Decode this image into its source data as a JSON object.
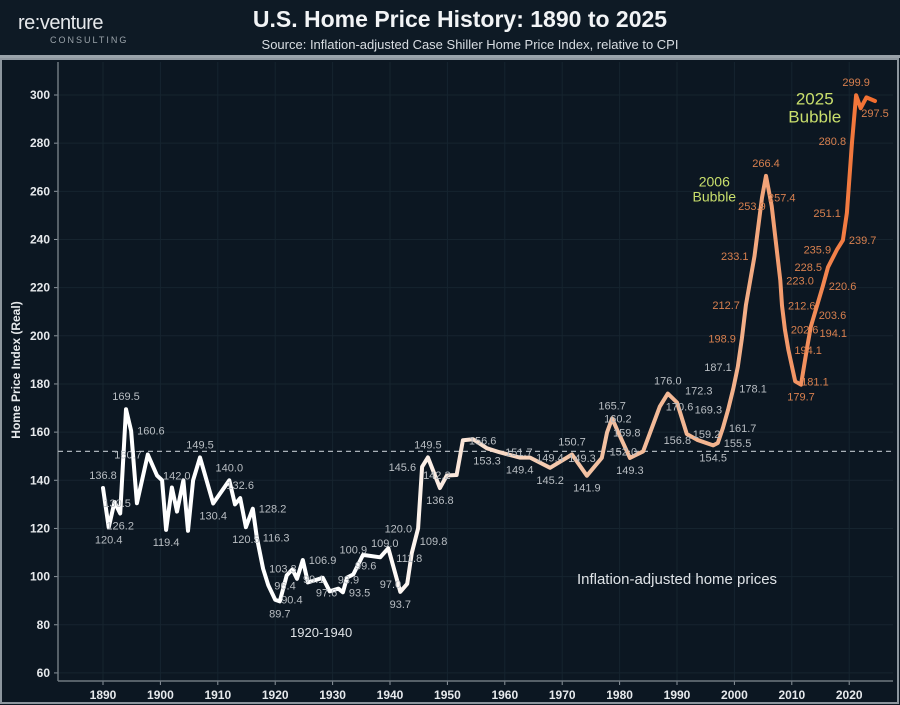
{
  "header": {
    "logo_name": "re:venture",
    "logo_sub": "CONSULTING",
    "title": "U.S. Home Price History: 1890 to 2025",
    "subtitle": "Source: Inflation-adjusted Case Shiller Home Price Index, relative to CPI"
  },
  "chart_data": {
    "type": "line",
    "title": "U.S. Home Price History: 1890 to 2025",
    "subtitle": "Source: Inflation-adjusted Case Shiller Home Price Index, relative to CPI",
    "xlabel": "",
    "ylabel": "Home Price Index (Real)",
    "xlim": [
      1882,
      2027
    ],
    "ylim": [
      57,
      312
    ],
    "x_ticks": [
      1890,
      1900,
      1910,
      1920,
      1930,
      1940,
      1950,
      1960,
      1970,
      1980,
      1990,
      2000,
      2010,
      2020
    ],
    "y_ticks": [
      60,
      80,
      100,
      120,
      140,
      160,
      180,
      200,
      220,
      240,
      260,
      280,
      300
    ],
    "grid": true,
    "reference_line": {
      "value": 152,
      "style": "dashed"
    },
    "colors": {
      "early": "#ffffff",
      "mid": "#f3c4a6",
      "late": "#f26a2a",
      "annotation": "#c9df6c",
      "label": "#b9bec3",
      "late_label": "#d8804f",
      "background": "#0c1722"
    },
    "annotations": [
      {
        "text_line1": "2006",
        "text_line2": "Bubble",
        "x": 1996.5,
        "y": 262
      },
      {
        "text_line1": "2025",
        "text_line2": "Bubble",
        "x": 2014,
        "y": 296
      },
      {
        "text": "1920-1940",
        "x": 1928,
        "y": 75
      },
      {
        "text": "Inflation-adjusted home prices",
        "x": 1990,
        "y": 97
      }
    ],
    "points": [
      [
        1890.0,
        136.8,
        "136.8"
      ],
      [
        1891.0,
        120.4,
        "120.4"
      ],
      [
        1892.0,
        131.0,
        ""
      ],
      [
        1893.0,
        126.2,
        "126.2"
      ],
      [
        1894.0,
        169.5,
        "169.5"
      ],
      [
        1894.9,
        160.6,
        "160.6"
      ],
      [
        1895.9,
        130.5,
        "130.5"
      ],
      [
        1897.8,
        150.7,
        "150.7"
      ],
      [
        1899.4,
        142.0,
        "142.0"
      ],
      [
        1900.3,
        140.0,
        ""
      ],
      [
        1901.0,
        119.4,
        "119.4"
      ],
      [
        1902.0,
        137.0,
        ""
      ],
      [
        1902.9,
        127.0,
        ""
      ],
      [
        1904.0,
        140.0,
        ""
      ],
      [
        1904.8,
        119.0,
        ""
      ],
      [
        1905.7,
        140.0,
        ""
      ],
      [
        1906.9,
        149.5,
        "149.5"
      ],
      [
        1909.2,
        130.4,
        "130.4"
      ],
      [
        1912.0,
        140.0,
        "140.0"
      ],
      [
        1913.0,
        130.0,
        ""
      ],
      [
        1913.9,
        132.6,
        "132.6"
      ],
      [
        1914.9,
        120.5,
        "120.5"
      ],
      [
        1916.1,
        128.2,
        "128.2"
      ],
      [
        1916.8,
        116.3,
        "116.3"
      ],
      [
        1917.9,
        103.3,
        "103.3"
      ],
      [
        1918.8,
        96.4,
        "96.4"
      ],
      [
        1920.0,
        90.4,
        "90.4"
      ],
      [
        1920.8,
        89.7,
        "89.7"
      ],
      [
        1922.0,
        100.5,
        ""
      ],
      [
        1923.0,
        103.0,
        ""
      ],
      [
        1923.8,
        99.1,
        "99.1"
      ],
      [
        1924.8,
        106.9,
        "106.9"
      ],
      [
        1925.7,
        97.6,
        "97.6"
      ],
      [
        1928.3,
        99.5,
        ""
      ],
      [
        1929.5,
        93.9,
        "93.9"
      ],
      [
        1931.0,
        95.0,
        ""
      ],
      [
        1931.8,
        93.5,
        "93.5"
      ],
      [
        1932.5,
        99.6,
        "99.6"
      ],
      [
        1933.6,
        100.9,
        "100.9"
      ],
      [
        1935.3,
        109.0,
        "109.0"
      ],
      [
        1938.3,
        108.0,
        ""
      ],
      [
        1939.7,
        111.8,
        "111.8"
      ],
      [
        1941.8,
        93.7,
        "93.7"
      ],
      [
        1943.0,
        97.0,
        "97.0"
      ],
      [
        1943.8,
        109.8,
        "109.8"
      ],
      [
        1944.9,
        120.0,
        "120.0"
      ],
      [
        1945.6,
        145.6,
        "145.6"
      ],
      [
        1946.6,
        149.5,
        "149.5"
      ],
      [
        1948.7,
        136.8,
        "136.8"
      ],
      [
        1949.9,
        142.0,
        ""
      ],
      [
        1951.6,
        142.2,
        "142.2"
      ],
      [
        1952.7,
        156.6,
        "156.6"
      ],
      [
        1954.5,
        157.0,
        ""
      ],
      [
        1956.9,
        153.3,
        "153.3"
      ],
      [
        1959.0,
        151.7,
        "151.7"
      ],
      [
        1962.6,
        149.4,
        "149.4"
      ],
      [
        1964.4,
        149.4,
        "149.4"
      ],
      [
        1967.9,
        145.2,
        "145.2"
      ],
      [
        1971.7,
        150.7,
        "150.7"
      ],
      [
        1974.3,
        141.9,
        "141.9"
      ],
      [
        1976.9,
        149.3,
        "149.3"
      ],
      [
        1977.8,
        159.8,
        "159.8"
      ],
      [
        1978.7,
        165.7,
        "165.7"
      ],
      [
        1979.7,
        160.2,
        "160.2"
      ],
      [
        1981.8,
        149.3,
        "149.3"
      ],
      [
        1984.1,
        152.0,
        "152.0"
      ],
      [
        1987.0,
        170.6,
        "170.6"
      ],
      [
        1988.4,
        176.0,
        "176.0"
      ],
      [
        1990.0,
        172.3,
        "172.3"
      ],
      [
        1991.7,
        159.2,
        "159.2"
      ],
      [
        1993.5,
        156.8,
        "156.8"
      ],
      [
        1996.3,
        154.5,
        "154.5"
      ],
      [
        1997.1,
        155.5,
        "155.5"
      ],
      [
        1998.0,
        161.7,
        "161.7"
      ],
      [
        1998.9,
        169.3,
        "169.3"
      ],
      [
        1999.8,
        178.1,
        "178.1"
      ],
      [
        2000.6,
        187.1,
        "187.1"
      ],
      [
        2001.3,
        198.9,
        "198.9"
      ],
      [
        2002.0,
        212.7,
        "212.7"
      ],
      [
        2003.5,
        233.1,
        "233.1"
      ],
      [
        2004.8,
        257.4,
        "257.4"
      ],
      [
        2005.5,
        266.4,
        "266.4"
      ],
      [
        2006.5,
        253.9,
        "253.9"
      ],
      [
        2008.0,
        223.0,
        "223.0"
      ],
      [
        2008.3,
        212.6,
        "212.6"
      ],
      [
        2008.8,
        202.6,
        "202.6"
      ],
      [
        2009.4,
        194.1,
        "194.1"
      ],
      [
        2010.6,
        181.1,
        "181.1"
      ],
      [
        2011.6,
        179.7,
        "179.7"
      ],
      [
        2012.6,
        194.1,
        "194.1"
      ],
      [
        2013.3,
        203.6,
        "203.6"
      ],
      [
        2015.4,
        220.6,
        "220.6"
      ],
      [
        2016.3,
        228.5,
        "228.5"
      ],
      [
        2017.9,
        235.9,
        "235.9"
      ],
      [
        2018.9,
        239.7,
        "239.7"
      ],
      [
        2019.6,
        251.1,
        "251.1"
      ],
      [
        2020.5,
        280.8,
        "280.8"
      ],
      [
        2021.2,
        299.9,
        "299.9"
      ],
      [
        2022.0,
        294.5,
        ""
      ],
      [
        2023.0,
        299.0,
        ""
      ],
      [
        2024.5,
        297.5,
        "297.5"
      ]
    ]
  }
}
